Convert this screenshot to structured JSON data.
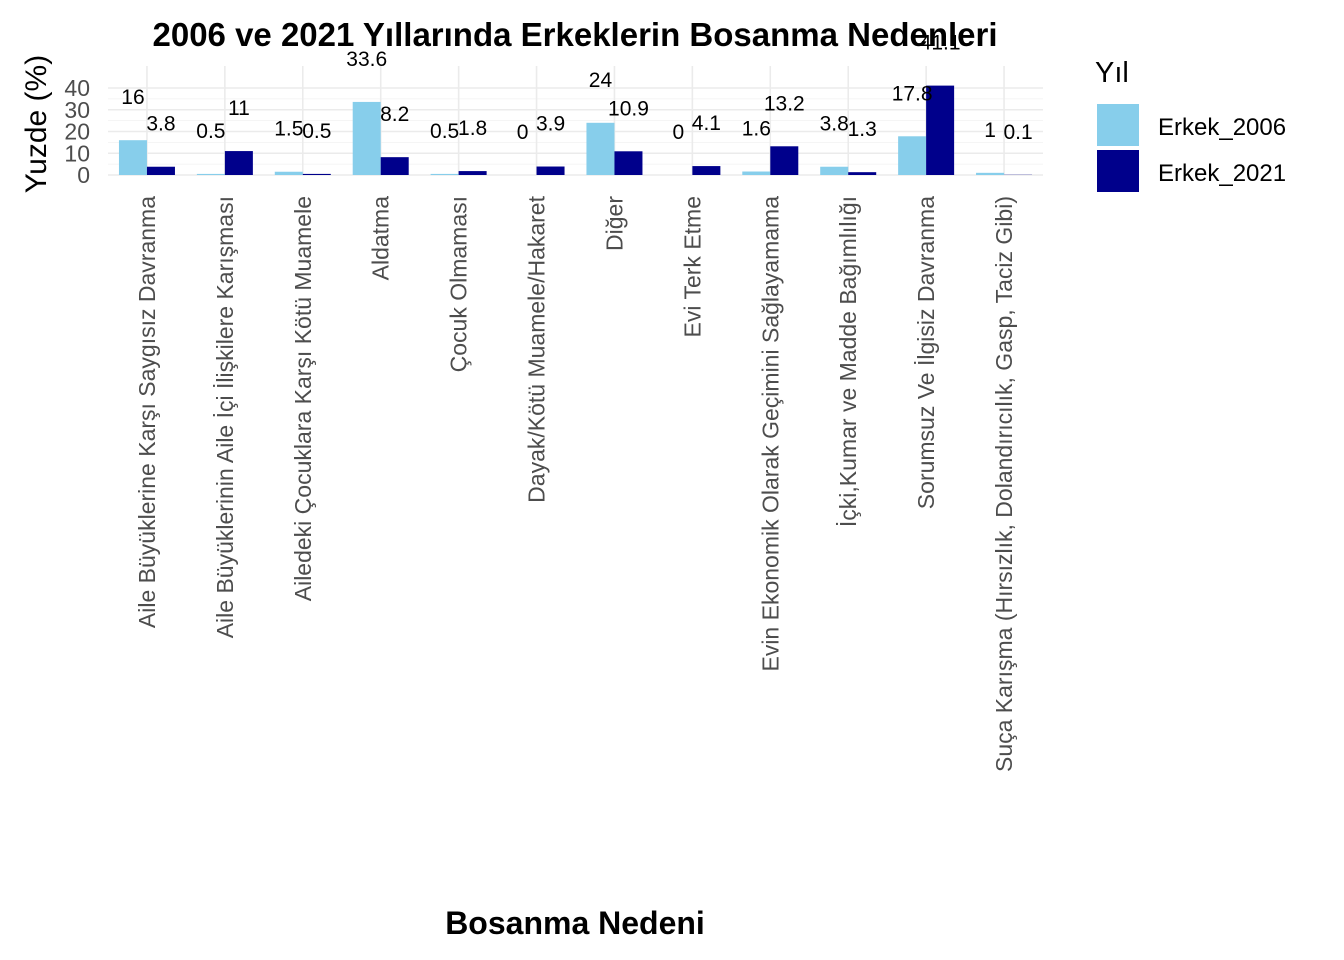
{
  "chart_data": {
    "type": "bar",
    "title": "2006 ve 2021 Yıllarında Erkeklerin Bosanma Nedenleri",
    "xlabel": "Bosanma Nedeni",
    "ylabel": "Yuzde (%)",
    "ylim": [
      0,
      45
    ],
    "yticks": [
      0,
      10,
      20,
      30,
      40
    ],
    "grid": true,
    "legend": {
      "title": "Yıl",
      "position": "right"
    },
    "categories": [
      "Aile Büyüklerine Karşı Saygısız Davranma",
      "Aile Büyüklerinin Aile İçi İlişkilere Karışması",
      "Ailedeki Çocuklara Karşı Kötü Muamele",
      "Aldatma",
      "Çocuk Olmaması",
      "Dayak/Kötü Muamele/Hakaret",
      "Diğer",
      "Evi Terk Etme",
      "Evin Ekonomik Olarak Geçimini Sağlayamama",
      "İçki,Kumar ve Madde Bağımlılığı",
      "Sorumsuz Ve İlgisiz Davranma",
      "Suça Karışma (Hırsızlık, Dolandırıcılık, Gasp, Taciz Gibi)"
    ],
    "series": [
      {
        "name": "Erkek_2006",
        "color": "#87CEEB",
        "values": [
          16,
          0.5,
          1.5,
          33.6,
          0.5,
          0,
          24,
          0,
          1.6,
          3.8,
          17.8,
          1
        ],
        "labels": [
          "16",
          "0.5",
          "1.5",
          "33.6",
          "0.5",
          "0",
          "24",
          "0",
          "1.6",
          "3.8",
          "17.8",
          "1"
        ]
      },
      {
        "name": "Erkek_2021",
        "color": "#00008B",
        "values": [
          3.8,
          11,
          0.5,
          8.2,
          1.8,
          3.9,
          10.9,
          4.1,
          13.2,
          1.3,
          41.1,
          0.1
        ],
        "labels": [
          "3.8",
          "11",
          "0.5",
          "8.2",
          "1.8",
          "3.9",
          "10.9",
          "4.1",
          "13.2",
          "1.3",
          "41.1",
          "0.1"
        ]
      }
    ]
  }
}
